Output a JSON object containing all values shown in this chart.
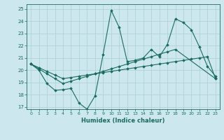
{
  "title": "",
  "xlabel": "Humidex (Indice chaleur)",
  "bg_color": "#cce8ee",
  "grid_color": "#aacdd6",
  "line_color": "#1a6b5e",
  "xlim": [
    -0.5,
    23.5
  ],
  "ylim": [
    16.8,
    25.4
  ],
  "xticks": [
    0,
    1,
    2,
    3,
    4,
    5,
    6,
    7,
    8,
    9,
    10,
    11,
    12,
    13,
    14,
    15,
    16,
    17,
    18,
    19,
    20,
    21,
    22,
    23
  ],
  "yticks": [
    17,
    18,
    19,
    20,
    21,
    22,
    23,
    24,
    25
  ],
  "line1_x": [
    0,
    1,
    2,
    3,
    4,
    5,
    6,
    7,
    8,
    9,
    10,
    11,
    12,
    13,
    14,
    15,
    16,
    17,
    18,
    19,
    20,
    21,
    22,
    23
  ],
  "line1_y": [
    20.5,
    20.0,
    18.9,
    18.35,
    18.4,
    18.5,
    17.3,
    16.8,
    17.9,
    21.3,
    24.9,
    23.5,
    20.7,
    20.8,
    21.0,
    21.7,
    21.1,
    22.1,
    24.2,
    23.9,
    23.3,
    21.9,
    20.3,
    19.5
  ],
  "line2_x": [
    0,
    1,
    2,
    3,
    4,
    5,
    6,
    7,
    8,
    9,
    10,
    11,
    12,
    13,
    14,
    15,
    16,
    17,
    18,
    23
  ],
  "line2_y": [
    20.5,
    20.1,
    19.7,
    19.3,
    18.9,
    19.1,
    19.3,
    19.5,
    19.7,
    19.9,
    20.1,
    20.3,
    20.5,
    20.7,
    20.9,
    21.1,
    21.3,
    21.5,
    21.7,
    19.3
  ],
  "line3_x": [
    0,
    1,
    2,
    3,
    4,
    5,
    6,
    7,
    8,
    9,
    10,
    11,
    12,
    13,
    14,
    15,
    16,
    17,
    18,
    19,
    20,
    21,
    22,
    23
  ],
  "line3_y": [
    20.5,
    20.2,
    19.9,
    19.6,
    19.3,
    19.4,
    19.5,
    19.6,
    19.7,
    19.8,
    19.9,
    20.0,
    20.1,
    20.2,
    20.3,
    20.4,
    20.5,
    20.6,
    20.7,
    20.8,
    20.9,
    21.0,
    21.1,
    19.3
  ]
}
